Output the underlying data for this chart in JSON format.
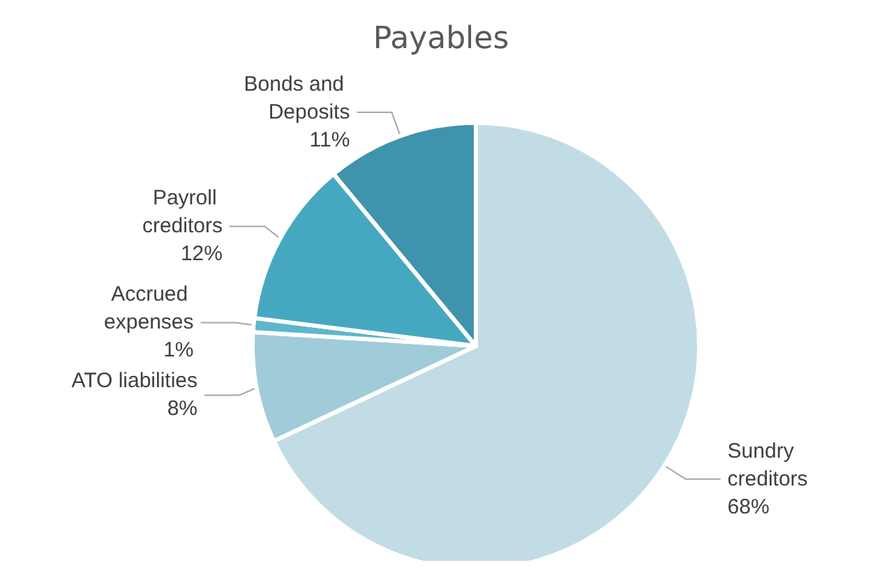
{
  "chart_data": {
    "type": "pie",
    "title": "Payables",
    "categories": [
      "Sundry creditors",
      "ATO liabilities",
      "Accrued expenses",
      "Payroll creditors",
      "Bonds and Deposits"
    ],
    "values": [
      68,
      8,
      1,
      12,
      11
    ],
    "value_labels": [
      "68%",
      "8%",
      "1%",
      "12%",
      "11%"
    ],
    "colors": [
      "#c2dce5",
      "#a0cbd9",
      "#5fb6ca",
      "#46a8c0",
      "#3f93ad"
    ],
    "legend": false
  }
}
